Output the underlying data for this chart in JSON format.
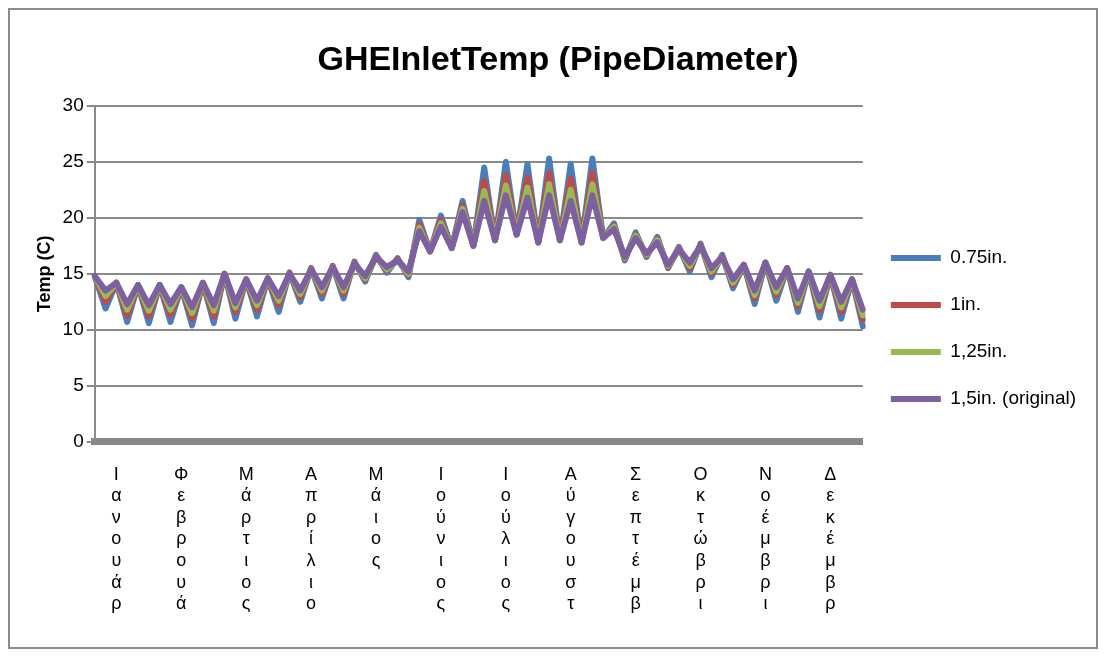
{
  "chart_data": {
    "type": "line",
    "title": "GHEInletTemp (PipeDiameter)",
    "ylabel": "Temp (C)",
    "categories": [
      null,
      null,
      "Ιανουάρ",
      null,
      null,
      null,
      null,
      null,
      "Φεβρουά",
      null,
      null,
      null,
      null,
      null,
      "Μάρτιος",
      null,
      null,
      null,
      null,
      null,
      "Απρίλιο",
      null,
      null,
      null,
      null,
      null,
      "Μάιος",
      null,
      null,
      null,
      null,
      null,
      "Ιούνιος",
      null,
      null,
      null,
      null,
      null,
      "Ιούλιος",
      null,
      null,
      null,
      null,
      null,
      "Αύγουστ",
      null,
      null,
      null,
      null,
      null,
      "Σεπτέμβ",
      null,
      null,
      null,
      null,
      null,
      "Οκτώβρι",
      null,
      null,
      null,
      null,
      null,
      "Νοέμβρι",
      null,
      null,
      null,
      null,
      null,
      "Δεκέμβρ",
      null,
      null,
      null
    ],
    "series": [
      {
        "name": "0.75in.",
        "color": "#4a7ebb",
        "values": [
          14.8,
          11.9,
          14.2,
          10.7,
          14.0,
          10.6,
          14.0,
          10.7,
          13.8,
          10.4,
          14.2,
          10.6,
          15.0,
          11.0,
          14.5,
          11.2,
          14.6,
          11.6,
          15.1,
          12.5,
          15.5,
          12.8,
          15.7,
          12.8,
          16.1,
          14.3,
          16.7,
          15.1,
          16.4,
          14.7,
          19.8,
          17.0,
          20.2,
          17.3,
          21.5,
          17.5,
          24.5,
          18.0,
          25.0,
          18.5,
          24.8,
          17.8,
          25.3,
          18.0,
          24.8,
          17.8,
          25.3,
          18.2,
          19.5,
          16.2,
          18.7,
          16.5,
          18.3,
          15.5,
          17.4,
          15.2,
          17.7,
          14.7,
          16.7,
          13.7,
          15.8,
          12.3,
          16.0,
          12.6,
          15.5,
          11.6,
          15.2,
          11.1,
          14.9,
          11.0,
          14.5,
          10.3
        ]
      },
      {
        "name": "1in.",
        "color": "#be4b48",
        "values": [
          14.8,
          12.5,
          14.2,
          11.3,
          14.0,
          11.2,
          14.0,
          11.3,
          13.8,
          11.0,
          14.2,
          11.2,
          15.0,
          11.6,
          14.5,
          11.8,
          14.6,
          12.2,
          15.1,
          12.9,
          15.5,
          13.2,
          15.7,
          13.2,
          16.0,
          14.5,
          16.6,
          15.3,
          16.3,
          14.9,
          19.4,
          17.0,
          19.8,
          17.3,
          21.1,
          17.5,
          23.3,
          18.0,
          23.8,
          18.5,
          23.6,
          17.8,
          24.0,
          18.0,
          23.5,
          17.8,
          24.0,
          18.2,
          19.3,
          16.3,
          18.5,
          16.6,
          18.1,
          15.6,
          17.3,
          15.5,
          17.6,
          15.0,
          16.6,
          14.0,
          15.8,
          12.8,
          16.0,
          13.1,
          15.5,
          12.1,
          15.2,
          11.7,
          14.9,
          11.6,
          14.5,
          10.9
        ]
      },
      {
        "name": "1,25in.",
        "color": "#98b954",
        "values": [
          14.8,
          13.0,
          14.2,
          11.8,
          14.0,
          11.7,
          14.0,
          11.8,
          13.8,
          11.5,
          14.2,
          11.7,
          15.0,
          12.0,
          14.5,
          12.2,
          14.6,
          12.6,
          15.0,
          13.2,
          15.4,
          13.5,
          15.6,
          13.5,
          15.9,
          14.6,
          16.5,
          15.4,
          16.2,
          15.0,
          19.1,
          17.0,
          19.5,
          17.3,
          20.8,
          17.5,
          22.4,
          18.0,
          22.9,
          18.5,
          22.7,
          17.8,
          23.0,
          18.0,
          22.5,
          17.8,
          23.0,
          18.2,
          19.2,
          16.4,
          18.4,
          16.7,
          18.0,
          15.7,
          17.2,
          15.7,
          17.5,
          15.2,
          16.5,
          14.2,
          15.8,
          13.1,
          16.0,
          13.4,
          15.5,
          12.4,
          15.2,
          12.1,
          14.9,
          12.0,
          14.5,
          11.3
        ]
      },
      {
        "name": "1,5in. (original)",
        "color": "#7d60a0",
        "values": [
          14.8,
          13.5,
          14.2,
          12.3,
          14.0,
          12.2,
          14.0,
          12.3,
          13.8,
          12.0,
          14.2,
          12.2,
          15.0,
          12.4,
          14.5,
          12.6,
          14.6,
          13.0,
          15.0,
          13.5,
          15.4,
          13.8,
          15.6,
          13.8,
          15.9,
          14.8,
          16.5,
          15.6,
          16.2,
          15.2,
          18.8,
          17.0,
          19.2,
          17.3,
          20.5,
          17.5,
          21.5,
          18.0,
          22.0,
          18.5,
          21.8,
          17.8,
          22.0,
          18.0,
          21.5,
          17.8,
          22.0,
          18.2,
          19.0,
          16.5,
          18.2,
          16.8,
          17.8,
          15.8,
          17.2,
          16.0,
          17.5,
          15.5,
          16.5,
          14.5,
          15.8,
          13.5,
          16.0,
          13.8,
          15.5,
          12.8,
          15.2,
          12.6,
          14.9,
          12.5,
          14.5,
          11.8
        ]
      }
    ],
    "ylim": [
      0,
      30
    ],
    "yticks": [
      0,
      5,
      10,
      15,
      20,
      25,
      30
    ],
    "grid": "y",
    "legend": "right",
    "marker": "none",
    "line_style": "solid"
  }
}
